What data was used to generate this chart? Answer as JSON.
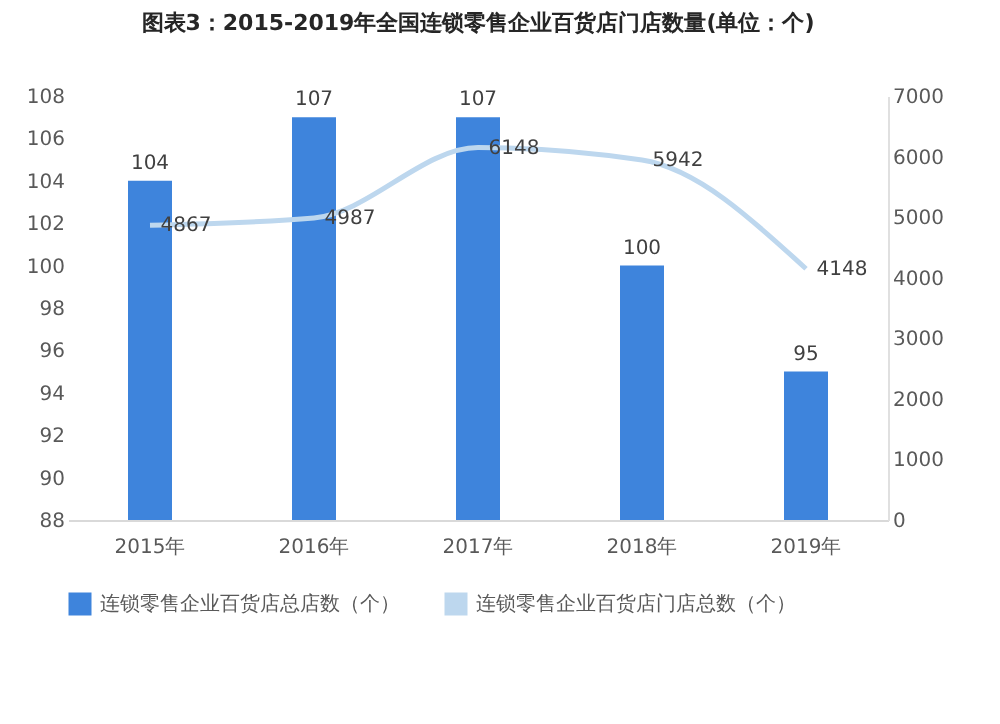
{
  "chart_data": {
    "type": "bar",
    "title": "图表3：2015-2019年全国连锁零售企业百货店门店数量(单位：个)",
    "categories": [
      "2015年",
      "2016年",
      "2017年",
      "2018年",
      "2019年"
    ],
    "series": [
      {
        "name": "连锁零售企业百货店总店数（个）",
        "color": "#3e84dc",
        "values": [
          104,
          107,
          107,
          100,
          95
        ]
      },
      {
        "name": "连锁零售企业百货店门店总数（个）",
        "type": "line",
        "axis": "y2",
        "color": "#bdd7ee",
        "values": [
          4867,
          4987,
          6148,
          5942,
          4148
        ]
      }
    ],
    "ylim": [
      88,
      108
    ],
    "yticks": [
      88,
      90,
      92,
      94,
      96,
      98,
      100,
      102,
      104,
      106,
      108
    ],
    "y2lim": [
      0,
      7000
    ],
    "y2ticks": [
      0,
      1000,
      2000,
      3000,
      4000,
      5000,
      6000,
      7000
    ],
    "data_labels": true,
    "legend": "bottom",
    "grid": false,
    "marker": "none",
    "line_style": "solid"
  }
}
